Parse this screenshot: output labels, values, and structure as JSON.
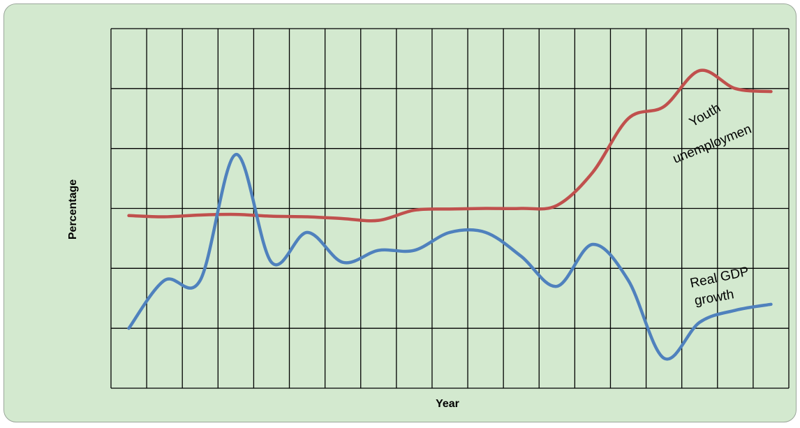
{
  "chart_data": {
    "type": "line",
    "title": "",
    "xlabel": "Year",
    "ylabel": "Percentage",
    "grid": true,
    "x_divisions": 19,
    "y_divisions": 6,
    "ylim": [
      0,
      6
    ],
    "x": [
      0.5,
      1.5,
      2.5,
      3.5,
      4.5,
      5.5,
      6.5,
      7.5,
      8.5,
      9.5,
      10.5,
      11.5,
      12.5,
      13.5,
      14.5,
      15.5,
      16.5,
      17.5,
      18.5
    ],
    "series": [
      {
        "name": "Youth unemploymen",
        "color": "#c0504d",
        "values": [
          2.88,
          2.86,
          2.89,
          2.9,
          2.87,
          2.86,
          2.83,
          2.8,
          2.97,
          2.99,
          3.0,
          3.0,
          3.05,
          3.6,
          4.5,
          4.7,
          5.3,
          5.0,
          4.95
        ]
      },
      {
        "name": "Real GDP growth",
        "color": "#4f81bd",
        "values": [
          1.0,
          1.8,
          1.8,
          3.9,
          2.1,
          2.6,
          2.1,
          2.3,
          2.3,
          2.6,
          2.6,
          2.2,
          1.7,
          2.4,
          1.8,
          0.5,
          1.1,
          1.3,
          1.4
        ]
      }
    ]
  }
}
